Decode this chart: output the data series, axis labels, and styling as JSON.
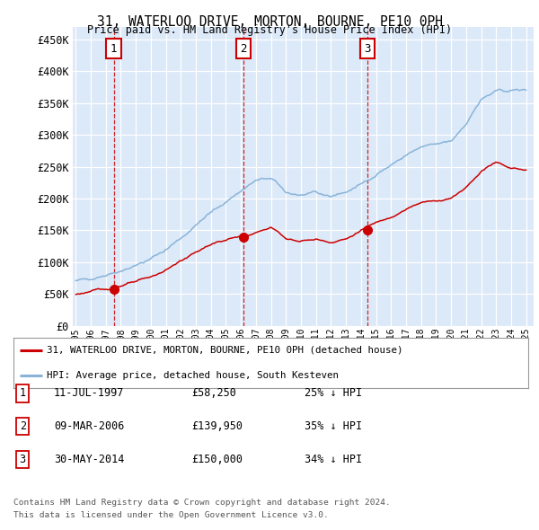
{
  "title": "31, WATERLOO DRIVE, MORTON, BOURNE, PE10 0PH",
  "subtitle": "Price paid vs. HM Land Registry's House Price Index (HPI)",
  "ytick_values": [
    0,
    50000,
    100000,
    150000,
    200000,
    250000,
    300000,
    350000,
    400000,
    450000
  ],
  "ylim": [
    0,
    470000
  ],
  "xlim_start": 1994.8,
  "xlim_end": 2025.5,
  "transactions": [
    {
      "num": 1,
      "date": "11-JUL-1997",
      "year": 1997.53,
      "price": 58250,
      "label": "1"
    },
    {
      "num": 2,
      "date": "09-MAR-2006",
      "year": 2006.19,
      "price": 139950,
      "label": "2"
    },
    {
      "num": 3,
      "date": "30-MAY-2014",
      "year": 2014.41,
      "price": 150000,
      "label": "3"
    }
  ],
  "legend_line1": "31, WATERLOO DRIVE, MORTON, BOURNE, PE10 0PH (detached house)",
  "legend_line2": "HPI: Average price, detached house, South Kesteven",
  "footer1": "Contains HM Land Registry data © Crown copyright and database right 2024.",
  "footer2": "This data is licensed under the Open Government Licence v3.0.",
  "table_rows": [
    {
      "num": "1",
      "date": "11-JUL-1997",
      "price": "£58,250",
      "pct": "25% ↓ HPI"
    },
    {
      "num": "2",
      "date": "09-MAR-2006",
      "price": "£139,950",
      "pct": "35% ↓ HPI"
    },
    {
      "num": "3",
      "date": "30-MAY-2014",
      "price": "£150,000",
      "pct": "34% ↓ HPI"
    }
  ],
  "plot_bg": "#dce9f8",
  "grid_color": "#ffffff",
  "red_line_color": "#cc0000",
  "blue_line_color": "#89b4d9",
  "dashed_color": "#cc0000",
  "dashed_color2": "#aaaacc",
  "xtick_years": [
    1995,
    1996,
    1997,
    1998,
    1999,
    2000,
    2001,
    2002,
    2003,
    2004,
    2005,
    2006,
    2007,
    2008,
    2009,
    2010,
    2011,
    2012,
    2013,
    2014,
    2015,
    2016,
    2017,
    2018,
    2019,
    2020,
    2021,
    2022,
    2023,
    2024,
    2025
  ],
  "hpi_base": [
    70000,
    75000,
    80000,
    87000,
    95000,
    105000,
    120000,
    138000,
    158000,
    178000,
    195000,
    212000,
    228000,
    232000,
    210000,
    205000,
    208000,
    204000,
    210000,
    222000,
    238000,
    252000,
    268000,
    280000,
    285000,
    290000,
    318000,
    355000,
    368000,
    370000,
    370000
  ],
  "red_base": [
    50000,
    54000,
    58250,
    63000,
    69000,
    77000,
    88000,
    102000,
    116000,
    128000,
    135000,
    139950,
    146000,
    155000,
    138000,
    133000,
    136000,
    132000,
    136000,
    150000,
    162000,
    172000,
    183000,
    193000,
    197000,
    200000,
    218000,
    243000,
    258000,
    248000,
    245000
  ],
  "hpi_noise_seed": 42,
  "red_noise_seed": 123,
  "hpi_noise_scale": 3500,
  "red_noise_scale": 2500,
  "hpi_n_points": 400,
  "red_n_points": 400
}
